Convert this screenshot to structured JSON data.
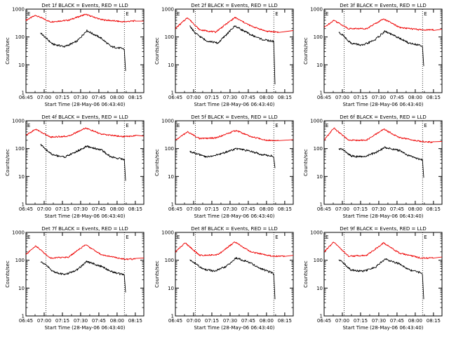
{
  "figure": {
    "x_tick_labels": [
      "06:45",
      "07:00",
      "07:15",
      "07:30",
      "07:45",
      "08:00",
      "08:15"
    ],
    "y_tick_labels": [
      "1",
      "10",
      "100",
      "1000"
    ],
    "xlabel": "Start Time (28-May-06 06:43:40)",
    "ylabel": "Counts/sec",
    "colors": {
      "events": "#000000",
      "lld": "#ee0000",
      "axes": "#000000"
    }
  },
  "chart_data": [
    {
      "type": "line",
      "title": "Det 1f BLACK = Events, RED = LLD",
      "xlabel": "Start Time (28-May-06 06:43:40)",
      "ylabel": "Counts/sec",
      "x_unit": "minutes after 06:45",
      "xlim": [
        0,
        97
      ],
      "ylim": [
        1,
        1000
      ],
      "y_scale": "log",
      "vlines": [
        {
          "x": 16.5,
          "label": ""
        },
        {
          "x": 81,
          "label": "E"
        }
      ],
      "corner_labels": [
        {
          "text": "E",
          "position": "top-left"
        }
      ],
      "series": [
        {
          "color": "#ee0000",
          "x": [
            0,
            8,
            20,
            35,
            49,
            62,
            80,
            90,
            97
          ],
          "values": [
            400,
            600,
            350,
            400,
            650,
            420,
            350,
            380,
            370
          ]
        },
        {
          "color": "#000000",
          "x": [
            12,
            16,
            22,
            32,
            42,
            50,
            62,
            70,
            80,
            81,
            82
          ],
          "values": [
            140,
            95,
            55,
            45,
            70,
            170,
            90,
            45,
            38,
            35,
            6
          ]
        }
      ]
    },
    {
      "type": "line",
      "title": "Det 2f BLACK = Events, RED = LLD",
      "xlabel": "Start Time (28-May-06 06:43:40)",
      "ylabel": "Counts/sec",
      "x_unit": "minutes after 06:45",
      "xlim": [
        0,
        97
      ],
      "ylim": [
        1,
        1000
      ],
      "y_scale": "log",
      "vlines": [
        {
          "x": 16.5,
          "label": ""
        },
        {
          "x": 81,
          "label": "E"
        }
      ],
      "corner_labels": [
        {
          "text": "E",
          "position": "top-left"
        }
      ],
      "series": [
        {
          "color": "#ee0000",
          "x": [
            0,
            10,
            20,
            33,
            49,
            62,
            75,
            85,
            97
          ],
          "values": [
            200,
            500,
            180,
            150,
            500,
            250,
            160,
            150,
            170
          ]
        },
        {
          "color": "#000000",
          "x": [
            12,
            16,
            25,
            35,
            49,
            62,
            72,
            80,
            81,
            82
          ],
          "values": [
            250,
            140,
            75,
            60,
            250,
            120,
            80,
            70,
            70,
            2
          ]
        }
      ]
    },
    {
      "type": "line",
      "title": "Det 3f BLACK = Events, RED = LLD",
      "xlabel": "Start Time (28-May-06 06:43:40)",
      "ylabel": "Counts/sec",
      "x_unit": "minutes after 06:45",
      "xlim": [
        0,
        97
      ],
      "ylim": [
        1,
        1000
      ],
      "y_scale": "log",
      "vlines": [
        {
          "x": 16.5,
          "label": ""
        },
        {
          "x": 81,
          "label": "E"
        }
      ],
      "corner_labels": [
        {
          "text": "E",
          "position": "top-left"
        }
      ],
      "series": [
        {
          "color": "#ee0000",
          "x": [
            0,
            8,
            20,
            35,
            49,
            62,
            80,
            90,
            97
          ],
          "values": [
            220,
            400,
            200,
            200,
            450,
            220,
            180,
            180,
            190
          ]
        },
        {
          "color": "#000000",
          "x": [
            12,
            16,
            22,
            32,
            42,
            50,
            62,
            70,
            80,
            81,
            82
          ],
          "values": [
            150,
            110,
            60,
            50,
            80,
            160,
            90,
            60,
            50,
            45,
            9
          ]
        }
      ]
    },
    {
      "type": "line",
      "title": "Det 4f BLACK = Events, RED = LLD",
      "xlabel": "Start Time (28-May-06 06:43:40)",
      "ylabel": "Counts/sec",
      "x_unit": "minutes after 06:45",
      "xlim": [
        0,
        97
      ],
      "ylim": [
        1,
        1000
      ],
      "y_scale": "log",
      "vlines": [
        {
          "x": 16.5,
          "label": ""
        },
        {
          "x": 81,
          "label": "E"
        }
      ],
      "corner_labels": [
        {
          "text": "E",
          "position": "top-left"
        }
      ],
      "series": [
        {
          "color": "#ee0000",
          "x": [
            0,
            8,
            20,
            35,
            49,
            62,
            80,
            90,
            97
          ],
          "values": [
            300,
            500,
            260,
            280,
            550,
            330,
            270,
            290,
            280
          ]
        },
        {
          "color": "#000000",
          "x": [
            12,
            16,
            22,
            32,
            42,
            50,
            62,
            70,
            80,
            81,
            82
          ],
          "values": [
            140,
            95,
            60,
            50,
            80,
            120,
            90,
            50,
            42,
            40,
            7
          ]
        }
      ]
    },
    {
      "type": "line",
      "title": "Det 5f BLACK = Events, RED = LLD",
      "xlabel": "Start Time (28-May-06 06:43:40)",
      "ylabel": "Counts/sec",
      "x_unit": "minutes after 06:45",
      "xlim": [
        0,
        97
      ],
      "ylim": [
        1,
        1000
      ],
      "y_scale": "log",
      "vlines": [
        {
          "x": 16.5,
          "label": ""
        },
        {
          "x": 81,
          "label": "E"
        }
      ],
      "corner_labels": [
        {
          "text": "E",
          "position": "top-left"
        }
      ],
      "series": [
        {
          "color": "#ee0000",
          "x": [
            0,
            10,
            20,
            33,
            50,
            62,
            75,
            85,
            97
          ],
          "values": [
            200,
            400,
            230,
            240,
            450,
            270,
            200,
            200,
            210
          ]
        },
        {
          "color": "#000000",
          "x": [
            12,
            16,
            25,
            35,
            50,
            62,
            72,
            80,
            81,
            82
          ],
          "values": [
            80,
            70,
            50,
            60,
            100,
            80,
            60,
            55,
            50,
            20
          ]
        }
      ]
    },
    {
      "type": "line",
      "title": "Det 6f BLACK = Events, RED = LLD",
      "xlabel": "Start Time (28-May-06 06:43:40)",
      "ylabel": "Counts/sec",
      "x_unit": "minutes after 06:45",
      "xlim": [
        0,
        97
      ],
      "ylim": [
        1,
        1000
      ],
      "y_scale": "log",
      "vlines": [
        {
          "x": 16.5,
          "label": ""
        },
        {
          "x": 81,
          "label": "E"
        }
      ],
      "corner_labels": [
        {
          "text": "E",
          "position": "top-left"
        }
      ],
      "series": [
        {
          "color": "#ee0000",
          "x": [
            0,
            8,
            20,
            35,
            49,
            62,
            80,
            90,
            97
          ],
          "values": [
            200,
            550,
            200,
            200,
            500,
            250,
            180,
            170,
            180
          ]
        },
        {
          "color": "#000000",
          "x": [
            12,
            16,
            22,
            32,
            42,
            50,
            62,
            70,
            80,
            81,
            82
          ],
          "values": [
            100,
            90,
            55,
            50,
            70,
            110,
            85,
            55,
            40,
            40,
            9
          ]
        }
      ]
    },
    {
      "type": "line",
      "title": "Det 7f BLACK = Events, RED = LLD",
      "xlabel": "Start Time (28-May-06 06:43:40)",
      "ylabel": "Counts/sec",
      "x_unit": "minutes after 06:45",
      "xlim": [
        0,
        97
      ],
      "ylim": [
        1,
        1000
      ],
      "y_scale": "log",
      "vlines": [
        {
          "x": 16.5,
          "label": ""
        },
        {
          "x": 81,
          "label": "E"
        }
      ],
      "corner_labels": [
        {
          "text": "E",
          "position": "top-left"
        }
      ],
      "series": [
        {
          "color": "#ee0000",
          "x": [
            0,
            8,
            20,
            35,
            49,
            62,
            80,
            90,
            97
          ],
          "values": [
            160,
            330,
            120,
            130,
            360,
            160,
            110,
            110,
            120
          ]
        },
        {
          "color": "#000000",
          "x": [
            12,
            16,
            22,
            32,
            42,
            50,
            62,
            70,
            80,
            81,
            82
          ],
          "values": [
            90,
            70,
            40,
            30,
            45,
            90,
            60,
            40,
            30,
            28,
            7
          ]
        }
      ]
    },
    {
      "type": "line",
      "title": "Det 8f BLACK = Events, RED = LLD",
      "xlabel": "Start Time (28-May-06 06:43:40)",
      "ylabel": "Counts/sec",
      "x_unit": "minutes after 06:45",
      "xlim": [
        0,
        97
      ],
      "ylim": [
        1,
        1000
      ],
      "y_scale": "log",
      "vlines": [
        {
          "x": 16.5,
          "label": ""
        },
        {
          "x": 81,
          "label": "E"
        }
      ],
      "corner_labels": [
        {
          "text": "E",
          "position": "top-left"
        }
      ],
      "series": [
        {
          "color": "#ee0000",
          "x": [
            0,
            8,
            20,
            35,
            49,
            62,
            80,
            90,
            97
          ],
          "values": [
            200,
            420,
            150,
            160,
            450,
            200,
            140,
            140,
            150
          ]
        },
        {
          "color": "#000000",
          "x": [
            12,
            16,
            22,
            32,
            42,
            50,
            62,
            70,
            80,
            81,
            82
          ],
          "values": [
            100,
            80,
            50,
            40,
            60,
            120,
            80,
            50,
            35,
            30,
            4
          ]
        }
      ]
    },
    {
      "type": "line",
      "title": "Det 9f BLACK = Events, RED = LLD",
      "xlabel": "Start Time (28-May-06 06:43:40)",
      "ylabel": "Counts/sec",
      "x_unit": "minutes after 06:45",
      "xlim": [
        0,
        97
      ],
      "ylim": [
        1,
        1000
      ],
      "y_scale": "log",
      "vlines": [
        {
          "x": 16.5,
          "label": ""
        },
        {
          "x": 81,
          "label": "E"
        }
      ],
      "corner_labels": [
        {
          "text": "E",
          "position": "top-left"
        }
      ],
      "series": [
        {
          "color": "#ee0000",
          "x": [
            0,
            8,
            20,
            35,
            49,
            62,
            80,
            90,
            97
          ],
          "values": [
            200,
            450,
            140,
            150,
            420,
            180,
            120,
            120,
            130
          ]
        },
        {
          "color": "#000000",
          "x": [
            12,
            16,
            22,
            32,
            42,
            50,
            62,
            70,
            80,
            81,
            82
          ],
          "values": [
            110,
            80,
            45,
            40,
            55,
            110,
            75,
            45,
            35,
            30,
            4
          ]
        }
      ]
    }
  ]
}
